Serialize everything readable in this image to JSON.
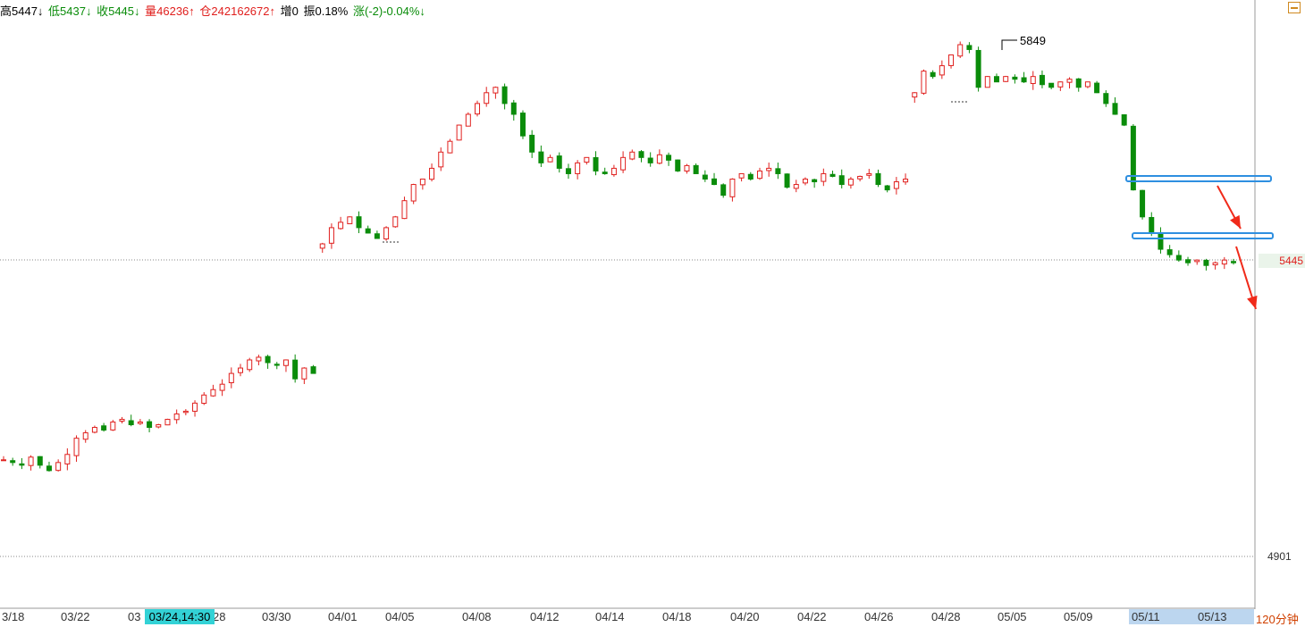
{
  "info": {
    "high": "高5447↓",
    "low": "低5437↓",
    "close": "收5445↓",
    "volume": "量46236↑",
    "open_interest": "仓242162672↑",
    "increase": "增0",
    "amplitude": "振0.18%",
    "change": "涨(-2)-0.04%↓"
  },
  "chart_data": {
    "type": "candlestick",
    "last_price": "5445",
    "low_label": "4901",
    "peak_label": "5849",
    "period": "120分钟",
    "cursor_time": "03/24,14:30",
    "x_ticks": [
      "3/18",
      "03/22",
      "03",
      "28",
      "03/30",
      "04/01",
      "04/05",
      "04/08",
      "04/12",
      "04/14",
      "04/18",
      "04/20",
      "04/22",
      "04/26",
      "04/28",
      "05/05",
      "05/09",
      "05/11",
      "05/13"
    ],
    "price_path": [
      5080,
      5075,
      5070,
      5085,
      5070,
      5060,
      5075,
      5090,
      5120,
      5130,
      5140,
      5135,
      5150,
      5155,
      5145,
      5150,
      5140,
      5145,
      5155,
      5165,
      5170,
      5185,
      5200,
      5210,
      5220,
      5240,
      5250,
      5265,
      5270,
      5260,
      5255,
      5265,
      5230,
      5250,
      5240,
      5480,
      5510,
      5520,
      5530,
      5510,
      5500,
      5490,
      5510,
      5530,
      5560,
      5590,
      5600,
      5620,
      5650,
      5670,
      5700,
      5720,
      5740,
      5760,
      5770,
      5740,
      5720,
      5680,
      5650,
      5630,
      5640,
      5620,
      5610,
      5630,
      5640,
      5615,
      5610,
      5620,
      5640,
      5650,
      5640,
      5630,
      5645,
      5635,
      5615,
      5625,
      5610,
      5600,
      5590,
      5570,
      5600,
      5610,
      5600,
      5615,
      5620,
      5610,
      5585,
      5590,
      5600,
      5595,
      5610,
      5605,
      5590,
      5600,
      5605,
      5610,
      5590,
      5580,
      5595,
      5600,
      5760,
      5800,
      5790,
      5810,
      5830,
      5849,
      5840,
      5770,
      5790,
      5780,
      5790,
      5785,
      5780,
      5790,
      5775,
      5770,
      5780,
      5785,
      5770,
      5780,
      5760,
      5740,
      5720,
      5700,
      5580,
      5530,
      5500,
      5470,
      5460,
      5450,
      5445,
      5450,
      5440,
      5445,
      5450,
      5445
    ],
    "gap_after_index": [
      34,
      99
    ],
    "drawn_annotations": [
      "horizontal-box-1",
      "horizontal-box-2",
      "arrow-1",
      "arrow-2"
    ]
  },
  "colors": {
    "up": "#e0201e",
    "down": "#0a8c0a",
    "box": "#2e8fe0",
    "arrow": "#f02a1a"
  }
}
